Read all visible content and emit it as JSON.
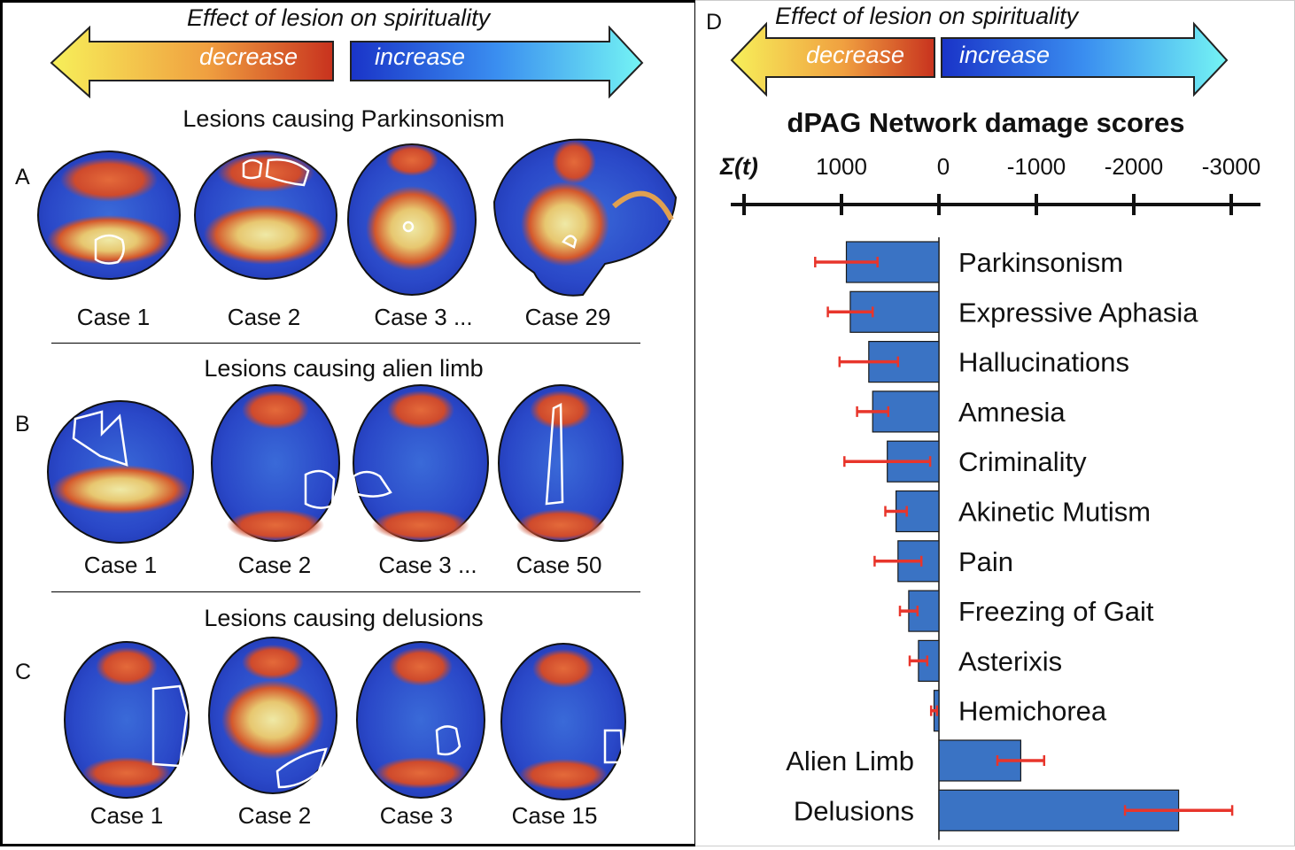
{
  "left": {
    "effect_title": "Effect of lesion on spirituality",
    "decrease_label": "decrease",
    "increase_label": "increase",
    "panels": [
      {
        "letter": "A",
        "title": "Lesions causing Parkinsonism",
        "cases": [
          "Case 1",
          "Case 2",
          "Case 3 ...",
          "Case 29"
        ]
      },
      {
        "letter": "B",
        "title": "Lesions causing alien limb",
        "cases": [
          "Case 1",
          "Case 2",
          "Case 3 ...",
          "Case 50"
        ]
      },
      {
        "letter": "C",
        "title": "Lesions causing delusions",
        "cases": [
          "Case 1",
          "Case 2",
          "Case 3",
          "Case 15"
        ]
      }
    ]
  },
  "right": {
    "letter": "D",
    "effect_title": "Effect of lesion  on spirituality",
    "decrease_label": "decrease",
    "increase_label": "increase"
  },
  "colors": {
    "bar": "#3a73c4",
    "bar_edge": "#1a1a1a",
    "error": "#e8352b",
    "decrease_gradient": [
      "#f7f05a",
      "#f0a040",
      "#c8321e"
    ],
    "increase_gradient": [
      "#1a34c8",
      "#3a8ef0",
      "#74f4f4"
    ]
  },
  "chart_data": {
    "type": "bar",
    "orientation": "horizontal",
    "title": "dPAG Network damage scores",
    "xlabel": "Σ(t)",
    "x_reversed": true,
    "xticks": [
      1000,
      0,
      -1000,
      -2000,
      -3000
    ],
    "xtick_labels": [
      "1000",
      "0",
      "-1000",
      "-2000",
      "-3000"
    ],
    "xlim": [
      1200,
      -3300
    ],
    "categories": [
      "Parkinsonism",
      "Expressive Aphasia",
      "Hallucinations",
      "Amnesia",
      "Criminality",
      "Akinetic Mutism",
      "Pain",
      "Freezing of Gait",
      "Asterixis",
      "Hemichorea",
      "Alien Limb",
      "Delusions"
    ],
    "values": [
      950,
      910,
      720,
      680,
      530,
      440,
      420,
      310,
      210,
      50,
      -840,
      -2460
    ],
    "error": [
      320,
      230,
      300,
      160,
      440,
      110,
      240,
      90,
      90,
      30,
      240,
      550
    ]
  }
}
